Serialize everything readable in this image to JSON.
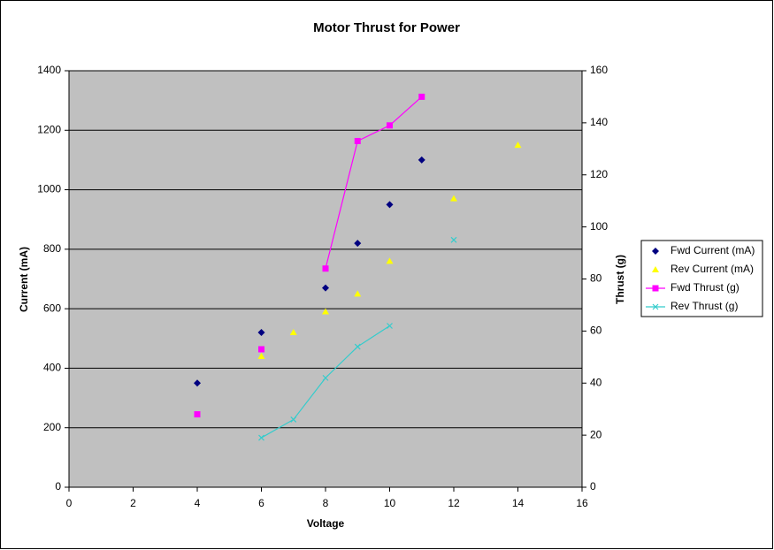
{
  "chart_data": {
    "type": "scatter",
    "title": "Motor Thrust for Power",
    "x_label": "Voltage",
    "y_label": "Current (mA)",
    "y2_label": "Thrust (g)",
    "xlim": [
      0,
      16
    ],
    "xticks": [
      0,
      2,
      4,
      6,
      8,
      10,
      12,
      14,
      16
    ],
    "ylim": [
      0,
      1400
    ],
    "yticks": [
      0,
      200,
      400,
      600,
      800,
      1000,
      1200,
      1400
    ],
    "y2lim": [
      0,
      160
    ],
    "y2ticks": [
      0,
      20,
      40,
      60,
      80,
      100,
      120,
      140,
      160
    ],
    "grid": true,
    "plot_background": "#c0c0c0",
    "legend": "right",
    "series": [
      {
        "name": "Fwd Current (mA)",
        "color": "#000080",
        "marker": "diamond",
        "line": false,
        "x": [
          4,
          6,
          8,
          9,
          10,
          11
        ],
        "values": [
          350,
          520,
          670,
          820,
          950,
          1100
        ]
      },
      {
        "name": "Rev Current (mA)",
        "color": "#ffff00",
        "marker": "triangle",
        "line": false,
        "x": [
          6,
          7,
          8,
          9,
          10,
          12,
          14
        ],
        "values": [
          440,
          520,
          590,
          650,
          760,
          970,
          1150
        ]
      },
      {
        "name": "Fwd Thrust (g)",
        "color": "#ff00ff",
        "marker": "square",
        "line": true,
        "axis": "y2",
        "x": [
          4,
          5,
          6,
          7,
          8,
          9,
          10,
          11
        ],
        "values": [
          28,
          null,
          53,
          null,
          84,
          133,
          139,
          150
        ]
      },
      {
        "name": "Rev Thrust (g)",
        "color": "#33cccc",
        "marker": "cross",
        "line": true,
        "axis": "y2",
        "x": [
          6,
          7,
          8,
          9,
          10,
          11,
          12
        ],
        "values": [
          19,
          26,
          42,
          54,
          62,
          null,
          95
        ]
      }
    ]
  }
}
